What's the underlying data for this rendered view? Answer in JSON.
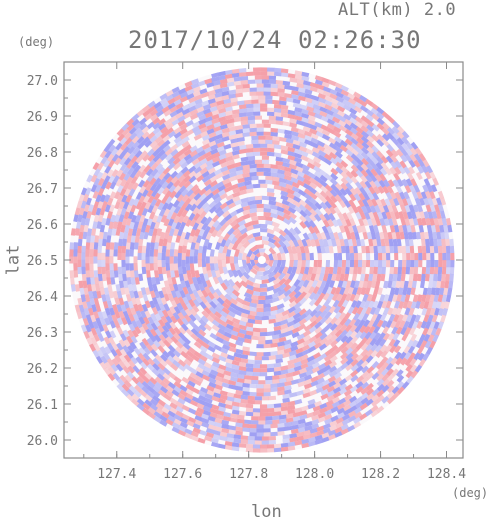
{
  "header": {
    "altitude_label": "ALT(km) 2.0",
    "datetime": "2017/10/24 02:26:30"
  },
  "chart_data": {
    "type": "heatmap",
    "title": "2017/10/24 02:26:30",
    "subtitle": "ALT(km) 2.0",
    "xlabel": "lon",
    "ylabel": "lat",
    "xunit": "(deg)",
    "yunit": "(deg)",
    "xlim": [
      127.24,
      128.45
    ],
    "ylim": [
      25.95,
      27.05
    ],
    "xticks": [
      "127.4",
      "127.6",
      "127.8",
      "128.0",
      "128.2",
      "128.4"
    ],
    "yticks": [
      "26.0",
      "26.1",
      "26.2",
      "26.3",
      "26.4",
      "26.5",
      "26.6",
      "26.7",
      "26.8",
      "26.9",
      "27.0"
    ],
    "center": {
      "lon": 127.84,
      "lat": 26.5
    },
    "radius_deg_lat": 0.535,
    "colors": {
      "positive": "#f4a0a8",
      "negative": "#a8a8f4",
      "axis": "#888888"
    },
    "grid": false
  }
}
